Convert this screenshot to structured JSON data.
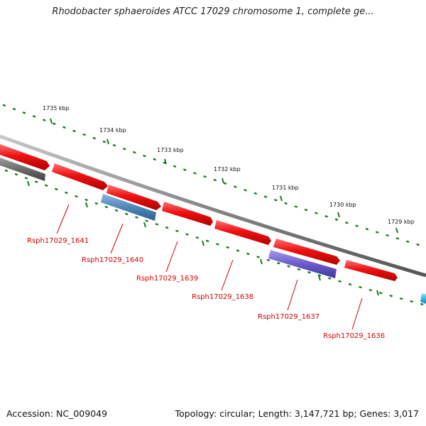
{
  "title": "Rhodobacter sphaeroides ATCC 17029 chromosome 1, complete ge...",
  "footer": {
    "accession": "Accession: NC_009049",
    "topology": "Topology: circular; Length: 3,147,721 bp; Genes: 3,017"
  },
  "colors": {
    "backbone": "#8a8a8a",
    "gene_forward": "#ee1111",
    "gene_gray": "#6a6a6a",
    "gene_steelblue": "#4f86b8",
    "gene_purple": "#6a5acd",
    "gene_cyan": "#2ab8e8",
    "tick_green": "#1a7a1a",
    "label_red": "#d40000"
  },
  "scale": {
    "unit": "kbp",
    "tick_labels": [
      "1735 kbp",
      "1734 kbp",
      "1733 kbp",
      "1732 kbp",
      "1731 kbp",
      "1730 kbp",
      "1729 kbp"
    ]
  },
  "genes": [
    {
      "label": "Rsph17029_1641",
      "color": "gene_forward"
    },
    {
      "label": "Rsph17029_1640",
      "color": "gene_forward"
    },
    {
      "label": "Rsph17029_1639",
      "color": "gene_forward"
    },
    {
      "label": "Rsph17029_1638",
      "color": "gene_forward"
    },
    {
      "label": "Rsph17029_1637",
      "color": "gene_forward"
    },
    {
      "label": "Rsph17029_1636",
      "color": "gene_forward"
    }
  ],
  "other_features": [
    {
      "color": "gene_forward"
    },
    {
      "color": "gene_gray"
    },
    {
      "color": "gene_steelblue"
    },
    {
      "color": "gene_purple"
    },
    {
      "color": "gene_cyan"
    }
  ]
}
